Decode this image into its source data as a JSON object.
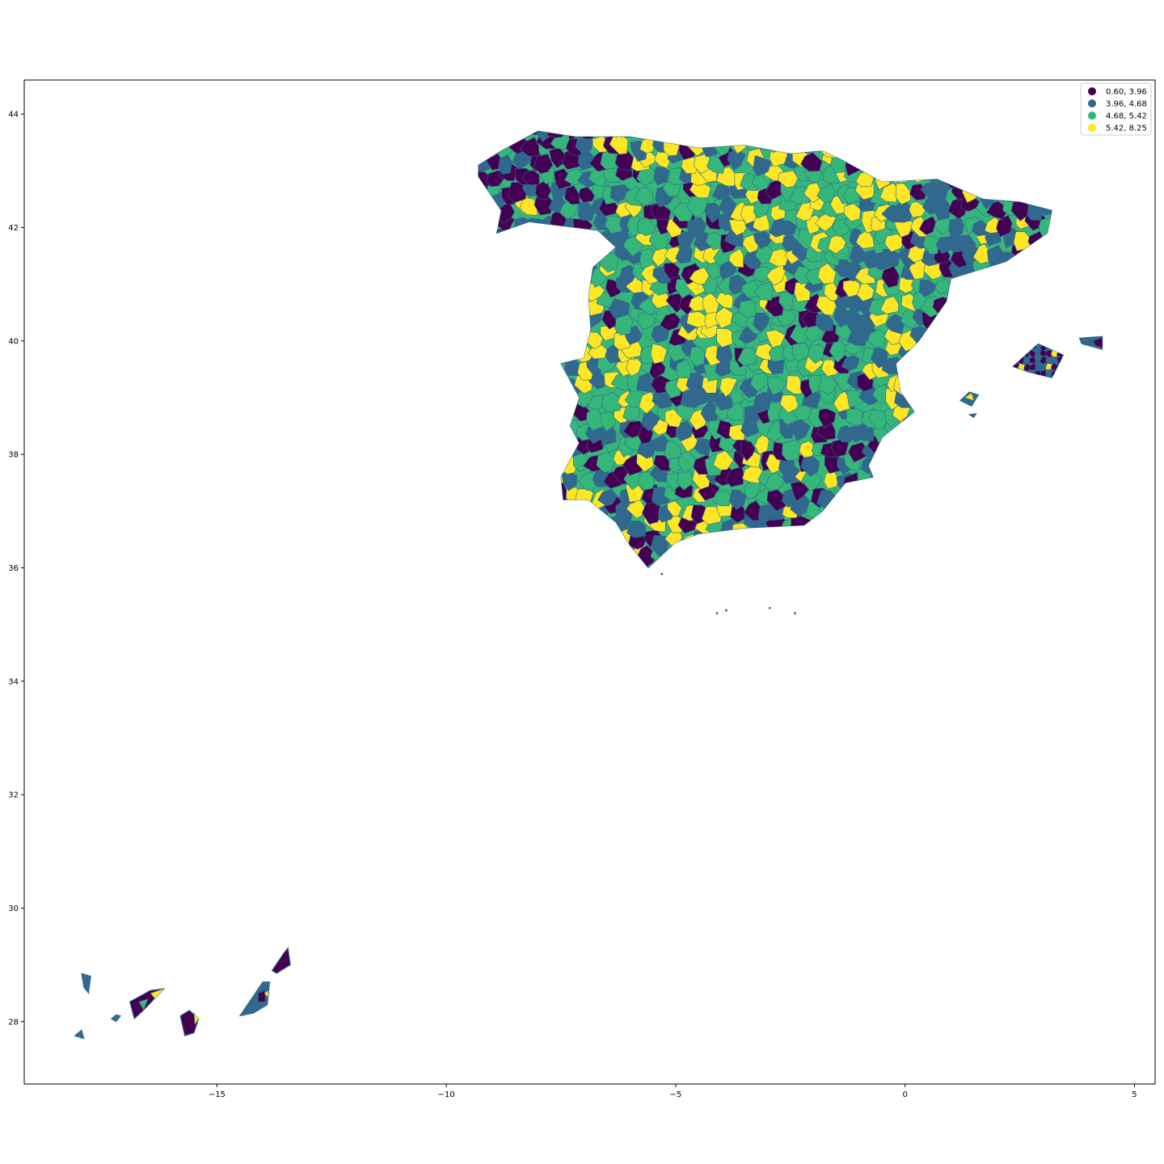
{
  "chart_data": {
    "type": "choropleth",
    "title": "",
    "xlabel": "",
    "ylabel": "",
    "xlim": [
      -19.2,
      5.45
    ],
    "ylim": [
      26.9,
      44.6
    ],
    "x_ticks": [
      {
        "value": -15,
        "label": "−15"
      },
      {
        "value": -10,
        "label": "−10"
      },
      {
        "value": -5,
        "label": "−5"
      },
      {
        "value": 0,
        "label": "0"
      },
      {
        "value": 5,
        "label": "5"
      }
    ],
    "y_ticks": [
      {
        "value": 28,
        "label": "28"
      },
      {
        "value": 30,
        "label": "30"
      },
      {
        "value": 32,
        "label": "32"
      },
      {
        "value": 34,
        "label": "34"
      },
      {
        "value": 36,
        "label": "36"
      },
      {
        "value": 38,
        "label": "38"
      },
      {
        "value": 40,
        "label": "40"
      },
      {
        "value": 42,
        "label": "42"
      },
      {
        "value": 44,
        "label": "44"
      }
    ],
    "legend": {
      "placement": "top-right",
      "entries": [
        {
          "label": "0.60, 3.96",
          "color": "#440154"
        },
        {
          "label": "3.96, 4.68",
          "color": "#31688e"
        },
        {
          "label": "4.68, 5.42",
          "color": "#35b779"
        },
        {
          "label": "5.42, 8.25",
          "color": "#fde725"
        }
      ]
    },
    "grid": false
  }
}
